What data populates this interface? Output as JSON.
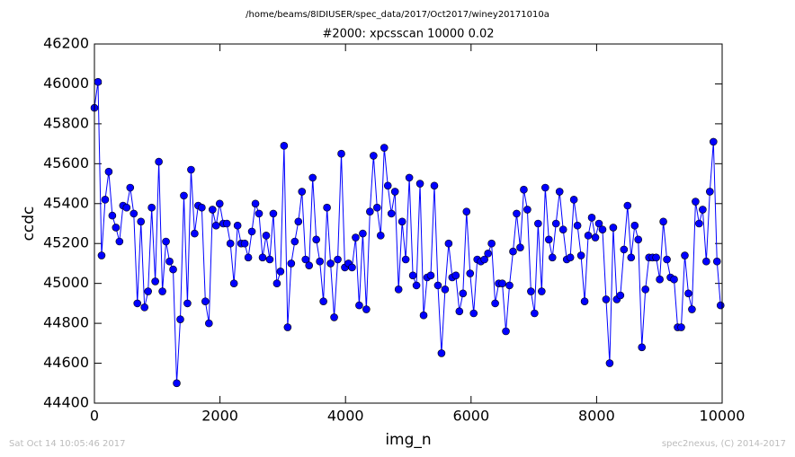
{
  "chart_data": {
    "type": "line",
    "suptitle": "/home/beams/8IDIUSER/spec_data/2017/Oct2017/winey20171010a",
    "title": "#2000: xpcsscan 10000 0.02",
    "xlabel": "img_n",
    "ylabel": "ccdc",
    "color": "#0000ff",
    "grid": false,
    "xlim": [
      0,
      10000
    ],
    "xticks": [
      0,
      2000,
      4000,
      6000,
      8000,
      10000
    ],
    "ylim": [
      44400,
      46200
    ],
    "yticks": [
      44400,
      44600,
      44800,
      45000,
      45200,
      45400,
      45600,
      45800,
      46000,
      46200
    ],
    "x": [
      0,
      57,
      114,
      171,
      228,
      285,
      342,
      399,
      456,
      513,
      570,
      627,
      684,
      741,
      798,
      855,
      912,
      969,
      1026,
      1083,
      1140,
      1197,
      1254,
      1311,
      1368,
      1425,
      1482,
      1539,
      1596,
      1653,
      1710,
      1767,
      1824,
      1881,
      1938,
      1995,
      2052,
      2109,
      2166,
      2223,
      2280,
      2337,
      2394,
      2451,
      2508,
      2565,
      2622,
      2679,
      2736,
      2793,
      2850,
      2907,
      2964,
      3021,
      3078,
      3135,
      3192,
      3249,
      3306,
      3363,
      3420,
      3477,
      3534,
      3591,
      3648,
      3705,
      3762,
      3819,
      3876,
      3933,
      3990,
      4047,
      4104,
      4161,
      4218,
      4275,
      4332,
      4389,
      4446,
      4503,
      4560,
      4617,
      4674,
      4731,
      4788,
      4845,
      4902,
      4959,
      5016,
      5073,
      5130,
      5187,
      5244,
      5301,
      5358,
      5415,
      5472,
      5529,
      5586,
      5643,
      5700,
      5757,
      5814,
      5871,
      5928,
      5985,
      6042,
      6099,
      6156,
      6213,
      6270,
      6327,
      6384,
      6441,
      6498,
      6555,
      6612,
      6669,
      6726,
      6783,
      6840,
      6897,
      6954,
      7011,
      7068,
      7125,
      7182,
      7239,
      7296,
      7353,
      7410,
      7467,
      7524,
      7581,
      7638,
      7695,
      7752,
      7809,
      7866,
      7923,
      7980,
      8037,
      8094,
      8151,
      8208,
      8265,
      8322,
      8379,
      8436,
      8493,
      8550,
      8607,
      8664,
      8721,
      8778,
      8835,
      8892,
      8949,
      9006,
      9063,
      9120,
      9177,
      9234,
      9291,
      9348,
      9405,
      9462,
      9519,
      9576,
      9633,
      9690,
      9747,
      9804,
      9861,
      9918,
      9975
    ],
    "values": [
      45880,
      46010,
      45140,
      45420,
      45560,
      45340,
      45280,
      45210,
      45390,
      45380,
      45480,
      45350,
      44900,
      45310,
      44880,
      44960,
      45380,
      45010,
      45610,
      44960,
      45210,
      45110,
      45070,
      44500,
      44820,
      45440,
      44900,
      45570,
      45250,
      45390,
      45380,
      44910,
      44800,
      45370,
      45290,
      45400,
      45300,
      45300,
      45200,
      45000,
      45290,
      45200,
      45200,
      45130,
      45260,
      45400,
      45350,
      45130,
      45240,
      45120,
      45350,
      45000,
      45060,
      45690,
      44780,
      45100,
      45210,
      45310,
      45460,
      45120,
      45090,
      45530,
      45220,
      45110,
      44910,
      45380,
      45100,
      44830,
      45120,
      45650,
      45080,
      45100,
      45080,
      45230,
      44890,
      45250,
      44870,
      45360,
      45640,
      45380,
      45240,
      45680,
      45490,
      45350,
      45460,
      44970,
      45310,
      45120,
      45530,
      45040,
      44990,
      45500,
      44840,
      45030,
      45040,
      45490,
      44990,
      44650,
      44970,
      45200,
      45030,
      45040,
      44860,
      44950,
      45360,
      45050,
      44850,
      45120,
      45110,
      45120,
      45150,
      45200,
      44900,
      45000,
      45000,
      44760,
      44990,
      45160,
      45350,
      45180,
      45470,
      45370,
      44960,
      44850,
      45300,
      44960,
      45480,
      45220,
      45130,
      45300,
      45460,
      45270,
      45120,
      45130,
      45420,
      45290,
      45140,
      44910,
      45240,
      45330,
      45230,
      45300,
      45270,
      44920,
      44600,
      45280,
      44920,
      44940,
      45170,
      45390,
      45130,
      45290,
      45220,
      44680,
      44970,
      45130,
      45130,
      45130,
      45020,
      45310,
      45120,
      45030,
      45020,
      44780,
      44780,
      45140,
      44950,
      44870,
      45410,
      45300,
      45370,
      45110,
      45460,
      45710,
      45110,
      44890
    ]
  },
  "footer": {
    "left": "Sat Oct 14 10:05:46 2017",
    "right": "spec2nexus, (C) 2014-2017"
  }
}
